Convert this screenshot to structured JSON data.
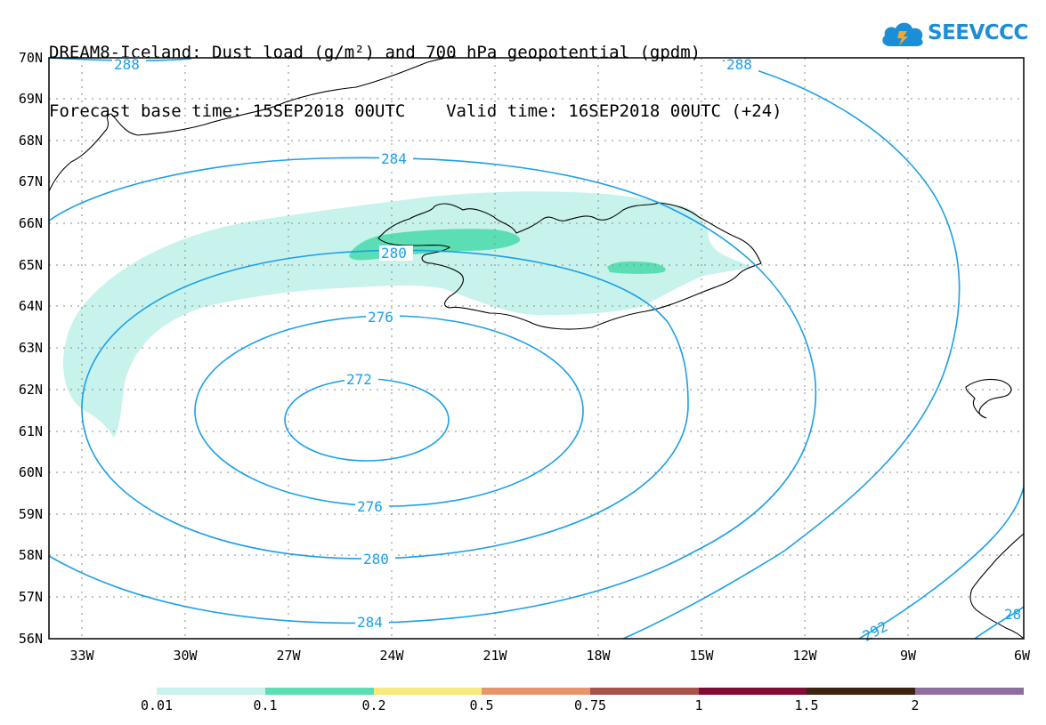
{
  "title": {
    "line1": "DREAM8-Iceland: Dust load (g/m²) and 700 hPa geopotential (gpdm)",
    "line2": "Forecast base time: 15SEP2018 00UTC    Valid time: 16SEP2018 00UTC (+24)"
  },
  "logo": {
    "text": "SEEVCCC",
    "icon": "cloud-icon"
  },
  "map": {
    "lat_labels": [
      "70N",
      "69N",
      "68N",
      "67N",
      "66N",
      "65N",
      "64N",
      "63N",
      "62N",
      "61N",
      "60N",
      "59N",
      "58N",
      "57N",
      "56N"
    ],
    "lon_labels": [
      "33W",
      "30W",
      "27W",
      "24W",
      "21W",
      "18W",
      "15W",
      "12W",
      "9W",
      "6W"
    ],
    "contour_color": "#1a9fe8",
    "contour_labels": [
      "288",
      "288",
      "284",
      "280",
      "276",
      "272",
      "276",
      "280",
      "284",
      "292",
      "28"
    ]
  },
  "legend": {
    "colors": [
      "#c8f2ec",
      "#5cdeb4",
      "#f9ea7c",
      "#e8956c",
      "#a8524a",
      "#800c34",
      "#3e2410",
      "#8e6e9e"
    ],
    "labels": [
      "0.01",
      "0.1",
      "0.2",
      "0.5",
      "0.75",
      "1",
      "1.5",
      "2"
    ]
  }
}
